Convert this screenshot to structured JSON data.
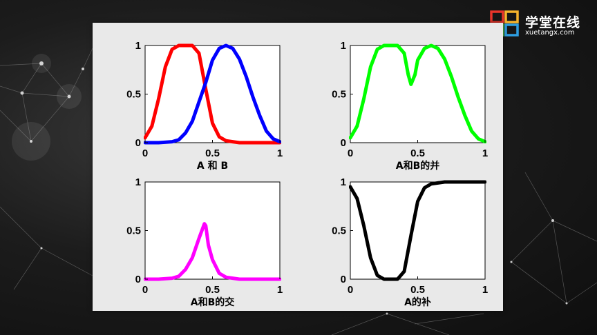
{
  "logo": {
    "name_cn": "学堂在线",
    "name_en": "xuetangx.com",
    "colors": [
      "#e8342a",
      "#f6b42c",
      "#4db848",
      "#2e9ee0"
    ]
  },
  "chart_data": [
    {
      "type": "line",
      "xlabel": "A 和 B",
      "xlim": [
        0,
        1
      ],
      "ylim": [
        0,
        1
      ],
      "xticks": [
        "0",
        "0.5",
        "1"
      ],
      "yticks": [
        "0",
        "0.5",
        "1"
      ],
      "series": [
        {
          "color": "#ff0000",
          "x": [
            0,
            0.05,
            0.1,
            0.15,
            0.2,
            0.25,
            0.3,
            0.35,
            0.4,
            0.45,
            0.5,
            0.55,
            0.6,
            0.65,
            0.7,
            0.8,
            0.9,
            1.0
          ],
          "y": [
            0.05,
            0.17,
            0.45,
            0.78,
            0.96,
            1.0,
            1.0,
            1.0,
            0.92,
            0.55,
            0.2,
            0.06,
            0.02,
            0.01,
            0,
            0,
            0,
            0
          ]
        },
        {
          "color": "#0000ff",
          "x": [
            0,
            0.1,
            0.2,
            0.25,
            0.3,
            0.35,
            0.4,
            0.45,
            0.5,
            0.55,
            0.6,
            0.65,
            0.7,
            0.75,
            0.8,
            0.85,
            0.9,
            0.95,
            1.0
          ],
          "y": [
            0,
            0,
            0.01,
            0.03,
            0.1,
            0.22,
            0.42,
            0.62,
            0.85,
            0.97,
            1.0,
            0.97,
            0.86,
            0.68,
            0.47,
            0.28,
            0.12,
            0.04,
            0.01
          ]
        }
      ]
    },
    {
      "type": "line",
      "xlabel": "A和B的并",
      "xlim": [
        0,
        1
      ],
      "ylim": [
        0,
        1
      ],
      "xticks": [
        "0",
        "0.5",
        "1"
      ],
      "yticks": [
        "0",
        "0.5",
        "1"
      ],
      "series": [
        {
          "color": "#00ff00",
          "x": [
            0,
            0.05,
            0.1,
            0.15,
            0.2,
            0.25,
            0.3,
            0.35,
            0.4,
            0.43,
            0.45,
            0.48,
            0.5,
            0.55,
            0.6,
            0.65,
            0.7,
            0.75,
            0.8,
            0.85,
            0.9,
            0.95,
            1.0
          ],
          "y": [
            0.05,
            0.17,
            0.45,
            0.78,
            0.96,
            1.0,
            1.0,
            1.0,
            0.92,
            0.7,
            0.6,
            0.7,
            0.85,
            0.97,
            1.0,
            0.97,
            0.86,
            0.68,
            0.47,
            0.28,
            0.12,
            0.04,
            0.01
          ]
        }
      ]
    },
    {
      "type": "line",
      "xlabel": "A和B的交",
      "xlim": [
        0,
        1
      ],
      "ylim": [
        0,
        1
      ],
      "xticks": [
        "0",
        "0.5",
        "1"
      ],
      "yticks": [
        "0",
        "0.5",
        "1"
      ],
      "series": [
        {
          "color": "#ff00ff",
          "x": [
            0,
            0.1,
            0.2,
            0.25,
            0.3,
            0.35,
            0.4,
            0.44,
            0.45,
            0.47,
            0.5,
            0.55,
            0.6,
            0.65,
            0.7,
            0.8,
            0.9,
            1.0
          ],
          "y": [
            0,
            0,
            0.01,
            0.03,
            0.1,
            0.22,
            0.42,
            0.57,
            0.55,
            0.35,
            0.2,
            0.06,
            0.02,
            0.01,
            0,
            0,
            0,
            0
          ]
        }
      ]
    },
    {
      "type": "line",
      "xlabel": "A的补",
      "xlim": [
        0,
        1
      ],
      "ylim": [
        0,
        1
      ],
      "xticks": [
        "0",
        "0.5",
        "1"
      ],
      "yticks": [
        "0",
        "0.5",
        "1"
      ],
      "series": [
        {
          "color": "#000000",
          "x": [
            0,
            0.05,
            0.1,
            0.15,
            0.2,
            0.25,
            0.3,
            0.35,
            0.4,
            0.45,
            0.5,
            0.55,
            0.6,
            0.65,
            0.7,
            0.8,
            0.9,
            1.0
          ],
          "y": [
            0.95,
            0.83,
            0.55,
            0.22,
            0.04,
            0,
            0,
            0,
            0.08,
            0.45,
            0.8,
            0.94,
            0.98,
            0.99,
            1.0,
            1.0,
            1.0,
            1.0
          ]
        }
      ]
    }
  ]
}
